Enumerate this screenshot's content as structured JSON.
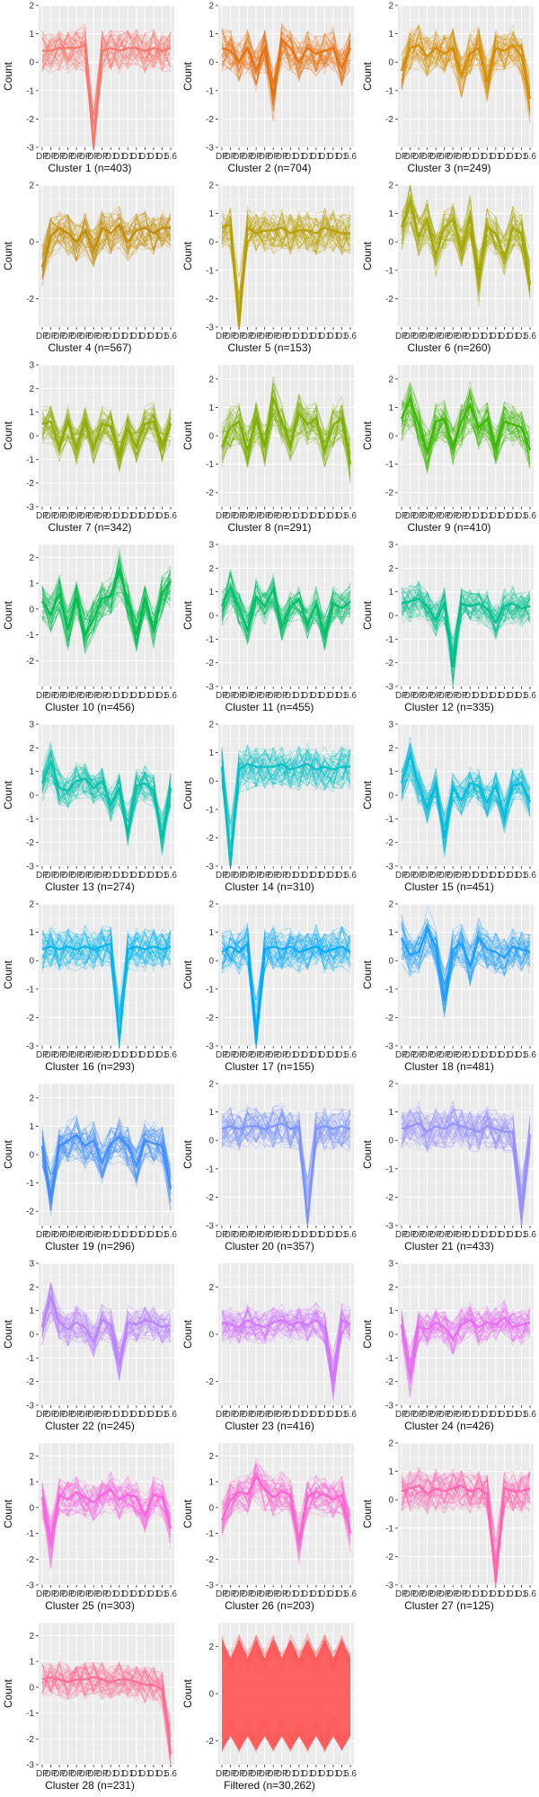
{
  "chart_data": {
    "type": "line",
    "layout": "faceted 3-column grid",
    "ylabel": "Count",
    "x_categories": [
      "DP",
      "DP",
      "DP",
      "DP",
      "DP",
      "DP",
      "DP",
      "DP",
      "D1",
      "D1",
      "D1",
      "D1",
      "D1",
      "D1",
      "D1",
      "D1"
    ],
    "x_tick_label_last": "5.6",
    "panels": [
      {
        "title": "Cluster 1 (n=403)",
        "color": "#F8766D",
        "ylim": [
          -3,
          2
        ],
        "yticks": [
          -3,
          -2,
          -1,
          0,
          1,
          2
        ],
        "profile": [
          0.4,
          0.4,
          0.5,
          0.5,
          0.5,
          0.6,
          -3,
          0.4,
          0.5,
          0.4,
          0.5,
          0.5,
          0.4,
          0.5,
          0.4,
          0.5
        ]
      },
      {
        "title": "Cluster 2 (n=704)",
        "color": "#E8700E",
        "ylim": [
          -3,
          2
        ],
        "yticks": [
          -3,
          -2,
          -1,
          0,
          1,
          2
        ],
        "profile": [
          0.5,
          0.4,
          0,
          0.5,
          -0.3,
          0.5,
          -1.2,
          0.8,
          0.5,
          0,
          0.5,
          0.3,
          0.4,
          0.5,
          -0.2,
          0.5
        ]
      },
      {
        "title": "Cluster 3 (n=249)",
        "color": "#D58B00",
        "ylim": [
          -3,
          2
        ],
        "yticks": [
          -2,
          -1,
          0,
          1,
          2
        ],
        "profile": [
          -0.3,
          0.5,
          0.6,
          0.2,
          0.5,
          0.3,
          0.5,
          -0.5,
          0.3,
          0.5,
          -0.7,
          0.5,
          0.4,
          0.6,
          0.2,
          -1.3
        ]
      },
      {
        "title": "Cluster 4 (n=567)",
        "color": "#C08A00",
        "ylim": [
          -3,
          2
        ],
        "yticks": [
          -2,
          0,
          2
        ],
        "profile": [
          -0.9,
          0.2,
          0.5,
          0.3,
          0,
          0.4,
          -0.3,
          0.5,
          0.3,
          0.6,
          0,
          0.4,
          0.5,
          0.3,
          0.5,
          0.5
        ]
      },
      {
        "title": "Cluster 5 (n=153)",
        "color": "#B79F00",
        "ylim": [
          -3,
          2
        ],
        "yticks": [
          -3,
          -2,
          -1,
          0,
          1,
          2
        ],
        "profile": [
          0.5,
          0.6,
          -3,
          0.5,
          0.3,
          0.4,
          0.4,
          0.5,
          0.3,
          0.4,
          0.4,
          0.3,
          0.5,
          0.4,
          0.3,
          0.3
        ]
      },
      {
        "title": "Cluster 6 (n=260)",
        "color": "#A3A500",
        "ylim": [
          -3,
          2
        ],
        "yticks": [
          -2,
          -1,
          0,
          1,
          2
        ],
        "profile": [
          0.5,
          1.4,
          0.2,
          0.8,
          -0.5,
          0.5,
          0.8,
          -0.3,
          0.9,
          -1.4,
          0.5,
          0.3,
          -0.5,
          0.5,
          0.3,
          -1.5
        ]
      },
      {
        "title": "Cluster 7 (n=342)",
        "color": "#8FAA00",
        "ylim": [
          -3,
          3
        ],
        "yticks": [
          -3,
          -2,
          -1,
          0,
          1,
          2,
          3
        ],
        "profile": [
          0.5,
          0.6,
          -0.5,
          0.6,
          -0.5,
          0.6,
          -0.5,
          0.5,
          0.4,
          -0.8,
          0.3,
          -0.5,
          0.5,
          0.6,
          -0.5,
          0.5
        ]
      },
      {
        "title": "Cluster 8 (n=291)",
        "color": "#7CAE00",
        "ylim": [
          -2.5,
          2.5
        ],
        "yticks": [
          -2,
          -1,
          0,
          1,
          2
        ],
        "profile": [
          -0.4,
          0.3,
          0.5,
          -0.5,
          0.6,
          -0.4,
          1.3,
          0.5,
          -0.3,
          0.8,
          0.4,
          0.6,
          -0.5,
          0.4,
          0.6,
          -1
        ]
      },
      {
        "title": "Cluster 9 (n=410)",
        "color": "#39B600",
        "ylim": [
          -2.5,
          2.5
        ],
        "yticks": [
          -2,
          -1,
          0,
          1,
          2
        ],
        "profile": [
          0.6,
          1.3,
          0.4,
          -0.6,
          0.5,
          0.6,
          -0.4,
          0.5,
          1.1,
          0.3,
          0.6,
          -0.4,
          0.5,
          0.4,
          0.3,
          -0.5
        ]
      },
      {
        "title": "Cluster 10 (n=456)",
        "color": "#00BB4E",
        "ylim": [
          -3,
          2.5
        ],
        "yticks": [
          -2,
          -1,
          0,
          1,
          2
        ],
        "profile": [
          0.3,
          -0.2,
          0.6,
          -0.8,
          0.4,
          -1,
          -0.4,
          0.4,
          0.5,
          1.5,
          0.3,
          -1,
          0.4,
          -0.8,
          0.6,
          1.1
        ]
      },
      {
        "title": "Cluster 11 (n=455)",
        "color": "#00BE67",
        "ylim": [
          -3,
          3
        ],
        "yticks": [
          -3,
          -2,
          -1,
          0,
          1,
          2,
          3
        ],
        "profile": [
          0.4,
          1.2,
          0.3,
          -0.6,
          0.8,
          0.4,
          1.1,
          -0.5,
          0.4,
          0.7,
          -0.4,
          0.5,
          -0.8,
          0.5,
          0.3,
          0.6
        ]
      },
      {
        "title": "Cluster 12 (n=335)",
        "color": "#00C08B",
        "ylim": [
          -3,
          3
        ],
        "yticks": [
          -3,
          -2,
          -1,
          0,
          1,
          2,
          3
        ],
        "profile": [
          0.5,
          0.6,
          0.7,
          0.4,
          -0.2,
          0.5,
          -2.2,
          0.5,
          0.4,
          0.5,
          0.3,
          -0.3,
          0.4,
          0.5,
          0.3,
          0.4
        ]
      },
      {
        "title": "Cluster 13 (n=274)",
        "color": "#00C1A9",
        "ylim": [
          -3,
          3
        ],
        "yticks": [
          -3,
          -2,
          -1,
          0,
          1,
          2,
          3
        ],
        "profile": [
          0.5,
          1.4,
          0.3,
          0.2,
          0.6,
          0.7,
          0.3,
          0.6,
          -0.4,
          0.3,
          -1.6,
          0.4,
          0.5,
          0.2,
          -1.8,
          0.3
        ]
      },
      {
        "title": "Cluster 14 (n=310)",
        "color": "#00BFC4",
        "ylim": [
          -3,
          2
        ],
        "yticks": [
          -3,
          -2,
          -1,
          0,
          1,
          2
        ],
        "profile": [
          0.5,
          -3,
          0.4,
          0.6,
          0.5,
          0.5,
          0.5,
          0.6,
          0.4,
          0.5,
          0.6,
          0.4,
          0.5,
          0.4,
          0.5,
          0.5
        ]
      },
      {
        "title": "Cluster 15 (n=451)",
        "color": "#00BBDB",
        "ylim": [
          -3,
          3
        ],
        "yticks": [
          -3,
          -2,
          -1,
          0,
          1,
          2,
          3
        ],
        "profile": [
          0.5,
          1.7,
          0.4,
          -0.5,
          0.5,
          -1.8,
          0.3,
          -0.2,
          0.5,
          0.4,
          -0.3,
          0.4,
          -0.9,
          0.4,
          0.5,
          -0.3
        ]
      },
      {
        "title": "Cluster 16 (n=293)",
        "color": "#00B4F0",
        "ylim": [
          -3,
          2
        ],
        "yticks": [
          -3,
          -2,
          -1,
          0,
          1,
          2
        ],
        "profile": [
          0.4,
          0.5,
          0.4,
          0.5,
          0.4,
          0.5,
          0.4,
          0.5,
          0.6,
          -2.8,
          0.4,
          0.5,
          0.4,
          0.5,
          0.4,
          0.5
        ]
      },
      {
        "title": "Cluster 17 (n=155)",
        "color": "#00A9FF",
        "ylim": [
          -3,
          2
        ],
        "yticks": [
          -3,
          -2,
          -1,
          0,
          1,
          2
        ],
        "profile": [
          0.3,
          0.5,
          0.3,
          0.6,
          -2.9,
          0.4,
          0.5,
          0.4,
          0.5,
          0.3,
          0.4,
          0.5,
          0.3,
          0.4,
          0.5,
          0.3
        ]
      },
      {
        "title": "Cluster 18 (n=481)",
        "color": "#1C9DFF",
        "ylim": [
          -3,
          2
        ],
        "yticks": [
          -3,
          -2,
          -1,
          0,
          1,
          2
        ],
        "profile": [
          0.8,
          0.2,
          0.3,
          1.1,
          0.5,
          -1.4,
          0.4,
          0.6,
          -0.2,
          0.8,
          0.4,
          0.3,
          0.1,
          0.5,
          0.4,
          0.3
        ]
      },
      {
        "title": "Cluster 19 (n=296)",
        "color": "#3C8CFF",
        "ylim": [
          -2.5,
          2.5
        ],
        "yticks": [
          -2,
          -1,
          0,
          1,
          2
        ],
        "profile": [
          0.3,
          -1.5,
          0.3,
          0.5,
          0.7,
          0.3,
          0.5,
          -0.3,
          0.4,
          0.6,
          0.3,
          -0.4,
          0.5,
          0.4,
          0.3,
          -1.2
        ]
      },
      {
        "title": "Cluster 20 (n=357)",
        "color": "#7C93FF",
        "ylim": [
          -3,
          2
        ],
        "yticks": [
          -3,
          -2,
          -1,
          0,
          1,
          2
        ],
        "profile": [
          0.4,
          0.5,
          0.4,
          0.5,
          0.5,
          0.4,
          0.5,
          0.6,
          0.4,
          0.5,
          -2.9,
          0.4,
          0.5,
          0.4,
          0.5,
          0.4
        ]
      },
      {
        "title": "Cluster 21 (n=433)",
        "color": "#9590FF",
        "ylim": [
          -3,
          2
        ],
        "yticks": [
          -3,
          -2,
          -1,
          0,
          1,
          2
        ],
        "profile": [
          0.4,
          0.5,
          0.6,
          0.3,
          0.5,
          0.4,
          0.6,
          0.5,
          0.4,
          0.3,
          0.5,
          0.4,
          0.3,
          0.3,
          -2.6,
          0.2
        ]
      },
      {
        "title": "Cluster 22 (n=245)",
        "color": "#B983FF",
        "ylim": [
          -3,
          3
        ],
        "yticks": [
          -3,
          -2,
          -1,
          0,
          1,
          2,
          3
        ],
        "profile": [
          0.3,
          1.6,
          0.5,
          0.2,
          0.5,
          0.3,
          -0.3,
          0.6,
          0.4,
          -1.3,
          0.5,
          0.4,
          0.6,
          0.5,
          0.3,
          0.4
        ]
      },
      {
        "title": "Cluster 23 (n=416)",
        "color": "#D274FF",
        "ylim": [
          -3,
          3
        ],
        "yticks": [
          -2,
          0,
          2
        ],
        "profile": [
          0.5,
          0.4,
          0.3,
          0.6,
          0.4,
          0.3,
          0.5,
          0.6,
          0.4,
          0.5,
          0.4,
          0.6,
          0.3,
          -2,
          0.6,
          0.4
        ]
      },
      {
        "title": "Cluster 24 (n=426)",
        "color": "#E76BF3",
        "ylim": [
          -3,
          3
        ],
        "yticks": [
          -3,
          -2,
          -1,
          0,
          1,
          2,
          3
        ],
        "profile": [
          0.4,
          -1.8,
          0.3,
          0.2,
          0.5,
          0.3,
          -0.2,
          0.4,
          0.6,
          0.3,
          0.5,
          0.4,
          0.7,
          0.3,
          0.4,
          0.5
        ]
      },
      {
        "title": "Cluster 25 (n=303)",
        "color": "#F863DF",
        "ylim": [
          -3,
          2.5
        ],
        "yticks": [
          -3,
          -2,
          -1,
          0,
          1,
          2
        ],
        "profile": [
          0.4,
          -1.5,
          0.5,
          0.3,
          0.6,
          0.4,
          0.2,
          0.5,
          0.7,
          0.3,
          0.5,
          0.4,
          -0.3,
          0.5,
          0.4,
          -0.8
        ]
      },
      {
        "title": "Cluster 26 (n=203)",
        "color": "#FD61D1",
        "ylim": [
          -3,
          2.5
        ],
        "yticks": [
          -3,
          -2,
          -1,
          0,
          1,
          2
        ],
        "profile": [
          -0.5,
          0.3,
          0.6,
          0.5,
          1.2,
          0.7,
          0.4,
          0.6,
          0.5,
          -1.3,
          0.4,
          0.6,
          0.5,
          0.3,
          0.5,
          -1
        ]
      },
      {
        "title": "Cluster 27 (n=125)",
        "color": "#FF64B0",
        "ylim": [
          -3,
          2
        ],
        "yticks": [
          -3,
          -2,
          -1,
          0,
          1,
          2
        ],
        "profile": [
          0.3,
          0.4,
          0.5,
          0.2,
          0.4,
          0.3,
          0.4,
          0.5,
          0.3,
          0.4,
          0.2,
          -2.9,
          0.4,
          0.3,
          0.3,
          0.4
        ]
      },
      {
        "title": "Cluster 28 (n=231)",
        "color": "#FF6C91",
        "ylim": [
          -3,
          2.5
        ],
        "yticks": [
          -3,
          -2,
          -1,
          0,
          1,
          2
        ],
        "profile": [
          0.3,
          0.4,
          0.3,
          0.2,
          0.3,
          0.3,
          0.4,
          0.3,
          0.2,
          0.3,
          0.3,
          0.2,
          0.1,
          0.1,
          -0.1,
          -2.6
        ]
      },
      {
        "title": "Filtered (n=30,262)",
        "color": "#FF5A5A",
        "ylim": [
          -3,
          3
        ],
        "yticks": [
          -2,
          0,
          2
        ],
        "profile": [
          0,
          0,
          0,
          0,
          0,
          0,
          0,
          0,
          0,
          0,
          0,
          0,
          0,
          0,
          0,
          0
        ],
        "filled": true
      }
    ]
  }
}
